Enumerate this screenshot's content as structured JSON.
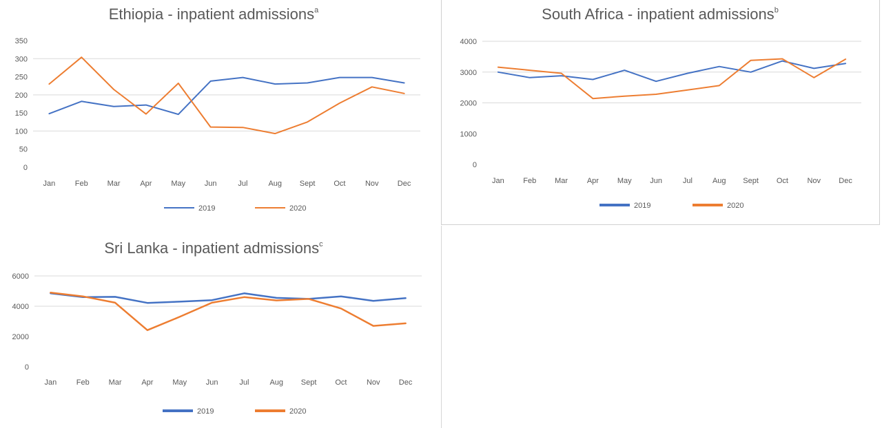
{
  "chart_data": [
    {
      "id": "ethiopia",
      "type": "line",
      "title": "Ethiopia - inpatient admissions",
      "title_superscript": "a",
      "categories": [
        "Jan",
        "Feb",
        "Mar",
        "Apr",
        "May",
        "Jun",
        "Jul",
        "Aug",
        "Sept",
        "Oct",
        "Nov",
        "Dec"
      ],
      "yticks": [
        "0",
        "50",
        "100",
        "150",
        "200",
        "250",
        "300",
        "350"
      ],
      "ylim": [
        0,
        350
      ],
      "gridlines": [
        100,
        200,
        300
      ],
      "series": [
        {
          "name": "2019",
          "color": "#4472C4",
          "values": [
            148,
            182,
            168,
            172,
            146,
            238,
            248,
            230,
            233,
            248,
            248,
            233
          ]
        },
        {
          "name": "2020",
          "color": "#ED7D31",
          "values": [
            230,
            304,
            215,
            147,
            232,
            111,
            110,
            93,
            125,
            177,
            222,
            204
          ]
        }
      ],
      "legend_position": "bottom"
    },
    {
      "id": "southafrica",
      "type": "line",
      "title": "South Africa - inpatient admissions",
      "title_superscript": "b",
      "categories": [
        "Jan",
        "Feb",
        "Mar",
        "Apr",
        "May",
        "Jun",
        "Jul",
        "Aug",
        "Sept",
        "Oct",
        "Nov",
        "Dec"
      ],
      "yticks": [
        "0",
        "1000",
        "2000",
        "3000",
        "4000"
      ],
      "ylim": [
        0,
        4000
      ],
      "gridlines": [
        2000,
        3000,
        4000
      ],
      "series": [
        {
          "name": "2019",
          "color": "#4472C4",
          "values": [
            3000,
            2820,
            2880,
            2760,
            3060,
            2700,
            2960,
            3180,
            3000,
            3360,
            3120,
            3280
          ]
        },
        {
          "name": "2020",
          "color": "#ED7D31",
          "values": [
            3160,
            3060,
            2960,
            2140,
            2220,
            2280,
            2420,
            2560,
            3380,
            3430,
            2820,
            3420
          ]
        }
      ],
      "legend_position": "bottom"
    },
    {
      "id": "srilanka",
      "type": "line",
      "title": "Sri Lanka - inpatient admissions",
      "title_superscript": "c",
      "categories": [
        "Jan",
        "Feb",
        "Mar",
        "Apr",
        "May",
        "Jun",
        "Jul",
        "Aug",
        "Sept",
        "Oct",
        "Nov",
        "Dec"
      ],
      "yticks": [
        "0",
        "2000",
        "4000",
        "6000"
      ],
      "ylim": [
        0,
        6000
      ],
      "gridlines": [
        4000,
        6000
      ],
      "series": [
        {
          "name": "2019",
          "color": "#4472C4",
          "values": [
            4850,
            4600,
            4620,
            4220,
            4300,
            4400,
            4850,
            4550,
            4480,
            4650,
            4350,
            4530
          ]
        },
        {
          "name": "2020",
          "color": "#ED7D31",
          "values": [
            4900,
            4650,
            4230,
            2420,
            3300,
            4230,
            4600,
            4380,
            4480,
            3850,
            2700,
            2870
          ]
        }
      ],
      "legend_position": "bottom"
    }
  ]
}
